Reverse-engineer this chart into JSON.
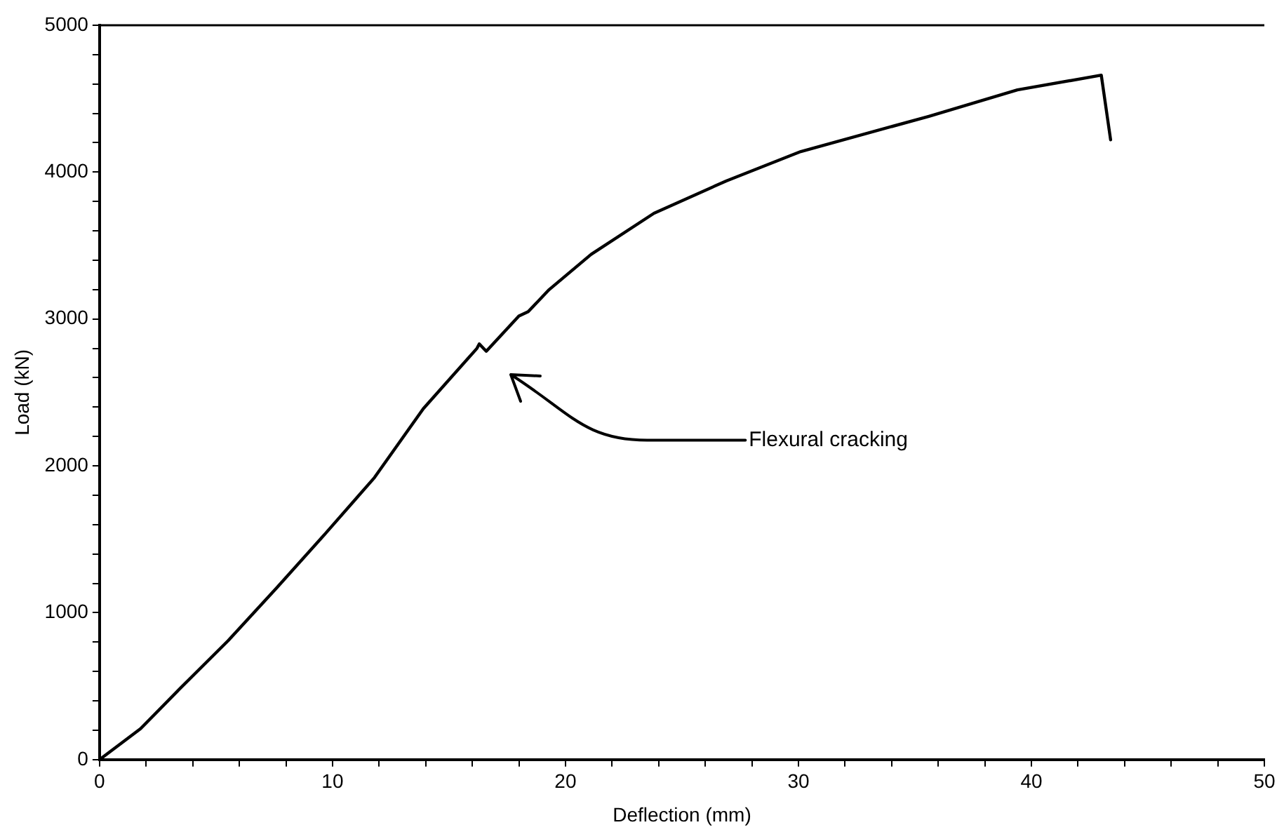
{
  "chart_data": {
    "type": "line",
    "xlabel": "Deflection (mm)",
    "ylabel": "Load (kN)",
    "series": [
      {
        "color": "#000000",
        "x": [
          0,
          1.76,
          3.43,
          5.52,
          7.61,
          9.7,
          11.8,
          13.9,
          16.2,
          16.3,
          16.6,
          18.0,
          18.4,
          19.3,
          21.1,
          23.8,
          26.9,
          30.1,
          35.6,
          39.4,
          43.0,
          43.4
        ],
        "values": [
          0,
          210,
          480,
          810,
          1170,
          1540,
          1920,
          2390,
          2800,
          2830,
          2780,
          3020,
          3050,
          3200,
          3440,
          3720,
          3940,
          4140,
          4380,
          4560,
          4660,
          4220
        ]
      }
    ],
    "xlim": [
      0,
      50
    ],
    "ylim": [
      0,
      5000
    ],
    "xticks": [
      0,
      {
        "value": 2,
        "label": null
      },
      {
        "value": 4,
        "label": null
      },
      {
        "value": 6,
        "label": null
      },
      {
        "value": 8,
        "label": null
      },
      10,
      {
        "value": 12,
        "label": null
      },
      {
        "value": 14,
        "label": null
      },
      {
        "value": 16,
        "label": null
      },
      {
        "value": 18,
        "label": null
      },
      20,
      {
        "value": 22,
        "label": null
      },
      {
        "value": 24,
        "label": null
      },
      {
        "value": 26,
        "label": null
      },
      {
        "value": 28,
        "label": null
      },
      30,
      {
        "value": 32,
        "label": null
      },
      {
        "value": 34,
        "label": null
      },
      {
        "value": 36,
        "label": null
      },
      {
        "value": 38,
        "label": null
      },
      40,
      {
        "value": 42,
        "label": null
      },
      {
        "value": 44,
        "label": null
      },
      {
        "value": 46,
        "label": null
      },
      {
        "value": 48,
        "label": null
      },
      50
    ],
    "yticks": [
      0,
      {
        "value": 200,
        "label": null
      },
      {
        "value": 400,
        "label": null
      },
      {
        "value": 600,
        "label": null
      },
      {
        "value": 800,
        "label": null
      },
      1000,
      {
        "value": 1200,
        "label": null
      },
      {
        "value": 1400,
        "label": null
      },
      {
        "value": 1600,
        "label": null
      },
      {
        "value": 1800,
        "label": null
      },
      2000,
      {
        "value": 2200,
        "label": null
      },
      {
        "value": 2400,
        "label": null
      },
      {
        "value": 2600,
        "label": null
      },
      {
        "value": 2800,
        "label": null
      },
      3000,
      {
        "value": 3200,
        "label": null
      },
      {
        "value": 3400,
        "label": null
      },
      {
        "value": 3600,
        "label": null
      },
      {
        "value": 3800,
        "label": null
      },
      4000,
      {
        "value": 4200,
        "label": null
      },
      {
        "value": 4400,
        "label": null
      },
      {
        "value": 4600,
        "label": null
      },
      {
        "value": 4800,
        "label": null
      },
      5000
    ],
    "annotations": [
      "Flexural cracking"
    ],
    "marker": "none",
    "line_style": "solid"
  }
}
